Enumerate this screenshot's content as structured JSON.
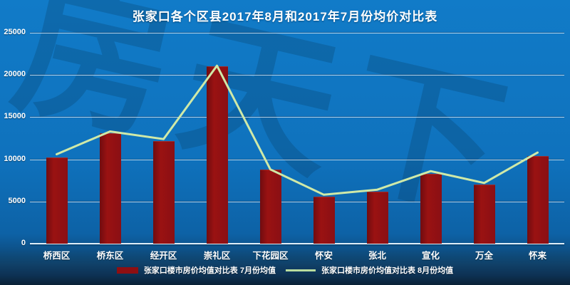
{
  "title": "张家口各个区县2017年8月和2017年7月份均价对比表",
  "watermark": "房天下",
  "colors": {
    "background": "#1177c5",
    "background_bottom": "#0a2136",
    "bar": "#8e0f12",
    "line": "#cfe9a8",
    "grid": "#cfe3f2",
    "text": "#ffffff",
    "watermark": "#0a3e6b"
  },
  "chart_data": {
    "type": "bar",
    "title": "张家口各个区县2017年8月和2017年7月份均价对比表",
    "categories": [
      "桥西区",
      "桥东区",
      "经开区",
      "崇礼区",
      "下花园区",
      "怀安",
      "张北",
      "宣化",
      "万全",
      "怀来"
    ],
    "series": [
      {
        "name": "张家口楼市房价均值对比表 7月份均值",
        "type": "bar",
        "color": "#8e0f12",
        "values": [
          10200,
          13100,
          12200,
          21000,
          8800,
          5600,
          6200,
          8300,
          7000,
          10400
        ]
      },
      {
        "name": "张家口楼市房价均值对比表 8月份均值",
        "type": "line",
        "color": "#cfe9a8",
        "values": [
          10600,
          13300,
          12400,
          21100,
          8800,
          5800,
          6400,
          8600,
          7200,
          10800
        ]
      }
    ],
    "xlabel": "",
    "ylabel": "",
    "ylim": [
      0,
      25000
    ],
    "yticks": [
      0,
      5000,
      10000,
      15000,
      20000,
      25000
    ],
    "grid": true,
    "legend_position": "bottom"
  }
}
